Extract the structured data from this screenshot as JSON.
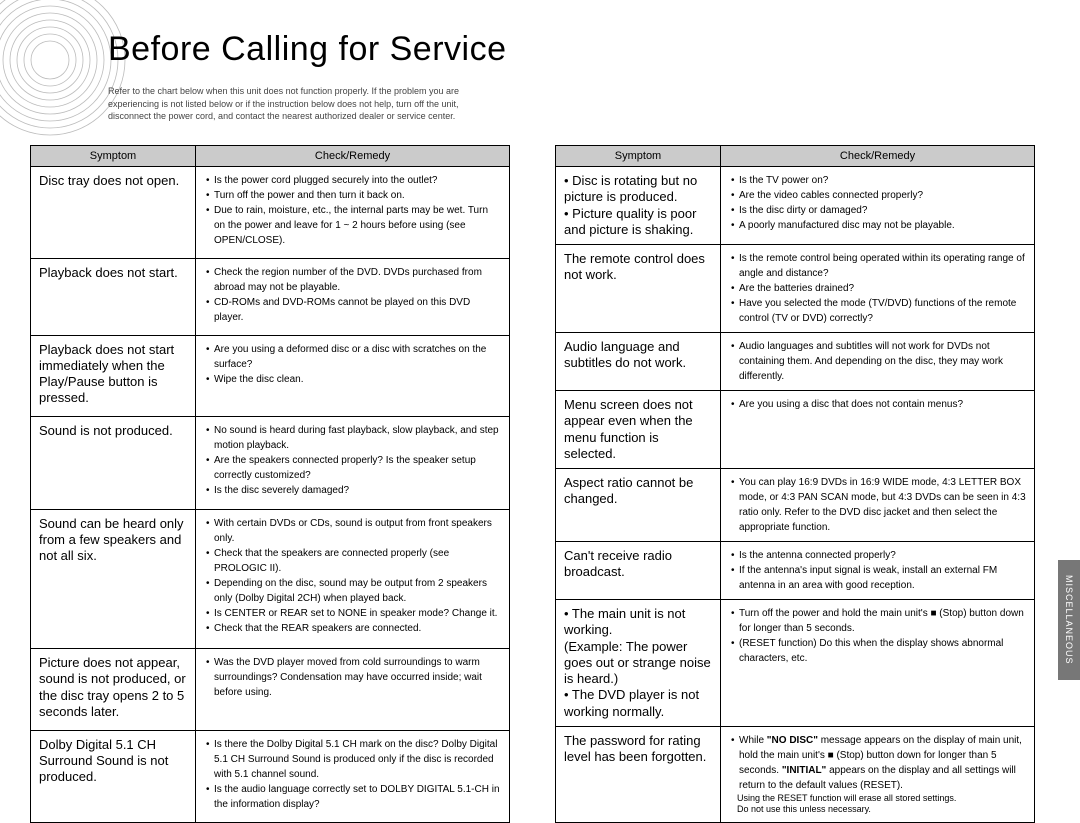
{
  "page": {
    "title": "Before Calling for Service",
    "intro_line1": "Refer to the chart below when this unit does not function properly. If the problem you are",
    "intro_line2": "experiencing is not listed below or if the instruction below does not help, turn off the unit,",
    "intro_line3": "disconnect the power cord, and contact the nearest authorized dealer or service center."
  },
  "side_tab": "MISCELLANEOUS",
  "headers": {
    "symptom": "Symptom",
    "remedy": "Check/Remedy"
  },
  "left": [
    {
      "symptom": "Disc tray does not open.",
      "remedy": [
        "Is the power cord plugged securely into the outlet?",
        "Turn off the power and then turn it back on.",
        "Due to rain, moisture, etc., the internal parts may be wet. Turn on the power and leave for 1 ~ 2 hours before using (see OPEN/CLOSE)."
      ]
    },
    {
      "symptom": "Playback does not start.",
      "remedy": [
        "Check the region number of the DVD. DVDs purchased from abroad may not be playable.",
        "CD-ROMs and DVD-ROMs cannot be played on this DVD player."
      ]
    },
    {
      "symptom": "Playback does not start immediately when the Play/Pause button is pressed.",
      "remedy": [
        "Are you using a deformed disc or a disc with scratches on the surface?",
        "Wipe the disc clean."
      ]
    },
    {
      "symptom": "Sound is not produced.",
      "remedy": [
        "No sound is heard during fast playback, slow playback, and step motion playback.",
        "Are the speakers connected properly? Is the speaker setup correctly customized?",
        "Is the disc severely damaged?"
      ]
    },
    {
      "symptom": "Sound can be heard only from a few speakers and not all six.",
      "remedy": [
        "With certain DVDs or CDs, sound is output from front speakers only.",
        "Check that the speakers are connected properly (see PROLOGIC II).",
        "Depending on the disc, sound may be output from 2 speakers only (Dolby Digital 2CH) when played back.",
        "Is CENTER or REAR set to NONE in speaker mode? Change it.",
        "Check that the REAR speakers are connected."
      ]
    },
    {
      "symptom": "Picture does not appear, sound is not produced, or the disc tray opens 2 to 5 seconds later.",
      "remedy": [
        "Was the DVD player moved from cold surroundings to warm surroundings? Condensation may have occurred inside; wait before using."
      ]
    },
    {
      "symptom": "Dolby Digital 5.1 CH Surround Sound is not produced.",
      "remedy": [
        "Is there the Dolby Digital 5.1 CH mark on the disc? Dolby Digital 5.1 CH Surround Sound is produced only if the disc is recorded with 5.1 channel sound.",
        "Is the audio language correctly set to DOLBY DIGITAL 5.1-CH in the information display?"
      ]
    }
  ],
  "right": [
    {
      "symptom": "¥ Disc is rotating but no picture is produced.\n¥ Picture quality is poor and picture is shaking.",
      "remedy": [
        "Is the TV power on?",
        "Are the video cables connected properly?",
        "Is the disc dirty or damaged?",
        "A poorly manufactured disc may not be playable."
      ]
    },
    {
      "symptom": "The remote control does not work.",
      "remedy": [
        "Is the remote control being operated within its operating range of angle and distance?",
        "Are the batteries drained?",
        "Have you selected the mode (TV/DVD) functions of the remote control (TV or DVD) correctly?"
      ]
    },
    {
      "symptom": "Audio language and subtitles do not work.",
      "remedy": [
        "Audio languages and subtitles will not work for DVDs not containing them. And depending on the disc, they may work differently."
      ]
    },
    {
      "symptom": "Menu screen does not appear even when the menu function is selected.",
      "remedy": [
        "Are you using a disc that does not contain menus?"
      ]
    },
    {
      "symptom": "Aspect ratio cannot be changed.",
      "remedy": [
        "You can play 16:9 DVDs in 16:9 WIDE mode, 4:3 LETTER BOX mode, or 4:3 PAN SCAN mode, but 4:3 DVDs can be seen in 4:3 ratio only. Refer to the DVD disc jacket and then select the appropriate function."
      ]
    },
    {
      "symptom": "Can't receive radio broadcast.",
      "remedy": [
        "Is the antenna connected properly?",
        "If the antenna's input signal is weak, install an external FM antenna in an area with good reception."
      ]
    },
    {
      "symptom": "¥ The main unit is not working.\n  (Example: The power goes out or strange noise is heard.)\n¥ The DVD player is not working normally.",
      "remedy": [
        "Turn off the power and hold the main unit's ■ (Stop) button down for longer than 5 seconds.",
        "(RESET function) Do this when the display shows abnormal characters, etc."
      ]
    },
    {
      "symptom": "The password for rating level has been forgotten.",
      "remedy_html": true,
      "remedy": [
        "While <b>\"NO DISC\"</b> message appears on the display of main unit, hold the main unit's ■ (Stop) button down for longer than 5 seconds. <b>\"INITIAL\"</b> appears on the display and all settings will return to the default values (RESET)."
      ],
      "notes": [
        "Using the RESET function will erase all stored settings.",
        "Do not use this unless necessary."
      ]
    }
  ],
  "colors": {
    "header_bg": "#cbcbcb",
    "text": "#000000",
    "bg": "#ffffff",
    "tab_bg": "#777777"
  }
}
